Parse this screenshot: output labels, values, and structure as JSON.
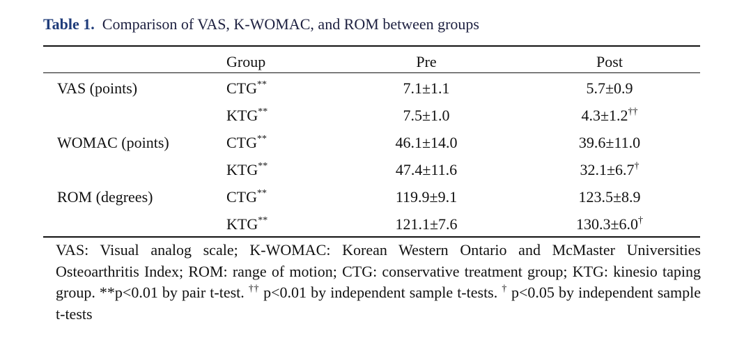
{
  "caption": {
    "label": "Table 1.",
    "text": "Comparison of VAS, K-WOMAC, and ROM between groups"
  },
  "table": {
    "header": [
      "Group",
      "Pre",
      "Post"
    ],
    "rows": [
      {
        "measure": "VAS (points)",
        "group": "CTG",
        "group_mark": "**",
        "pre": "7.1±1.1",
        "post": "5.7±0.9"
      },
      {
        "group": "KTG",
        "group_mark": "**",
        "pre": "7.5±1.0",
        "post": "4.3±1.2",
        "post_mark": "††"
      },
      {
        "measure": "WOMAC (points)",
        "group": "CTG",
        "group_mark": "**",
        "pre": "46.1±14.0",
        "post": "39.6±11.0"
      },
      {
        "group": "KTG",
        "group_mark": "**",
        "pre": "47.4±11.6",
        "post": "32.1±6.7",
        "post_mark": "†"
      },
      {
        "measure": "ROM (degrees)",
        "group": "CTG",
        "group_mark": "**",
        "pre": "119.9±9.1",
        "post": "123.5±8.9"
      },
      {
        "group": "KTG",
        "group_mark": "**",
        "pre": "121.1±7.6",
        "post": "130.3±6.0",
        "post_mark": "†"
      }
    ]
  },
  "footnote": {
    "text1": "VAS: Visual analog scale; K-WOMAC: Korean Western Ontario and McMaster Universities Osteoarthritis Index; ROM: range of motion; CTG: conservative treatment group; KTG: kinesio taping group. **p<0.01 by pair t-test. ",
    "mark1": "††",
    "text2": " p<0.01 by independent sample t-tests. ",
    "mark2": "†",
    "text3": " p<0.05 by independent sample t-tests"
  }
}
